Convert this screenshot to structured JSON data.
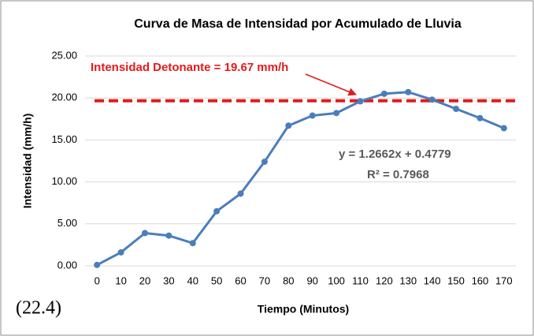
{
  "chart_data": {
    "type": "line",
    "title": "Curva de Masa de Intensidad por Acumulado de Lluvia",
    "x_label": "Tiempo (Minutos)",
    "y_label": "Intensidad (mm/h)",
    "categories": [
      "0",
      "10",
      "20",
      "30",
      "40",
      "50",
      "60",
      "70",
      "80",
      "90",
      "100",
      "110",
      "120",
      "130",
      "140",
      "150",
      "160",
      "170"
    ],
    "series": [
      {
        "name": "Intensidad",
        "color": "#4a7ebb",
        "values": [
          0.1,
          1.6,
          3.9,
          3.6,
          2.7,
          6.5,
          8.6,
          12.4,
          16.7,
          17.9,
          18.2,
          19.6,
          20.5,
          20.7,
          19.8,
          18.7,
          17.6,
          16.4
        ]
      }
    ],
    "threshold": {
      "value": 19.67,
      "label": "Intensidad Detonante = 19.67 mm/h",
      "color": "#e31a1c"
    },
    "annotations": [
      "y = 1.2662x + 0.4779",
      "R² = 0.7968",
      "(22.4)"
    ],
    "ylim": [
      0,
      25
    ],
    "yticks": [
      {
        "value": 0,
        "label": "0.00"
      },
      {
        "value": 5,
        "label": "5.00"
      },
      {
        "value": 10,
        "label": "10.00"
      },
      {
        "value": 15,
        "label": "15.00"
      },
      {
        "value": 20,
        "label": "20.00"
      },
      {
        "value": 25,
        "label": "25.00"
      }
    ],
    "grid": true
  }
}
